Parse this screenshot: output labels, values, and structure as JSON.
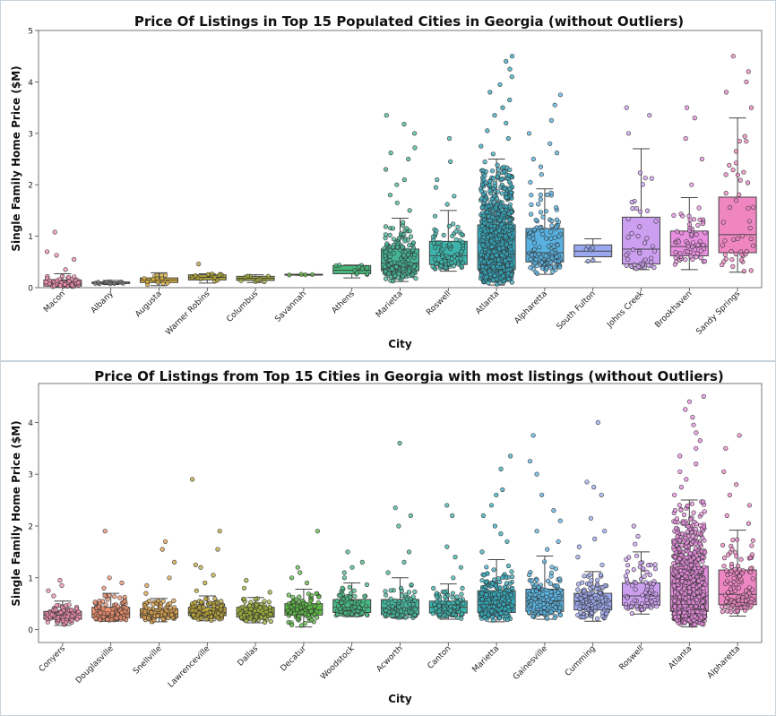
{
  "chart_data": [
    {
      "type": "box",
      "title": "Price Of Listings in Top 15 Populated Cities in Georgia (without Outliers)",
      "xlabel": "City",
      "ylabel": "Single Family Home Price ($M)",
      "ylim": [
        0,
        5
      ],
      "yticks": [
        0,
        1,
        2,
        3,
        4,
        5
      ],
      "grid": false,
      "legend": "none",
      "categories": [
        "Macon",
        "Albany",
        "Augusta",
        "Warner Robins",
        "Columbus",
        "Savannah",
        "Athens",
        "Marietta",
        "Roswell",
        "Atlanta",
        "Alpharetta",
        "South Fulton",
        "Johns Creek",
        "Brookhaven",
        "Sandy Springs"
      ],
      "colors": [
        "#f08fae",
        "#7b7b7b",
        "#d9b03c",
        "#b1a736",
        "#a3ab3d",
        "#68b543",
        "#46b87a",
        "#45b596",
        "#3cb4ab",
        "#35aabf",
        "#58b1e0",
        "#9aa9ef",
        "#cc9ff0",
        "#e88fe0",
        "#ef86c2"
      ],
      "boxes": [
        {
          "min": 0.01,
          "q1": 0.03,
          "median": 0.07,
          "q3": 0.15,
          "max": 0.27,
          "n": 40,
          "extra": [
            0.35,
            0.55,
            0.63,
            0.7,
            1.08
          ]
        },
        {
          "min": 0.06,
          "q1": 0.08,
          "median": 0.1,
          "q3": 0.11,
          "max": 0.14,
          "n": 12,
          "extra": []
        },
        {
          "min": 0.04,
          "q1": 0.1,
          "median": 0.15,
          "q3": 0.19,
          "max": 0.29,
          "n": 15,
          "extra": []
        },
        {
          "min": 0.09,
          "q1": 0.15,
          "median": 0.2,
          "q3": 0.25,
          "max": 0.27,
          "n": 14,
          "extra": [
            0.46
          ]
        },
        {
          "min": 0.1,
          "q1": 0.14,
          "median": 0.18,
          "q3": 0.22,
          "max": 0.25,
          "n": 10,
          "extra": []
        },
        {
          "min": 0.24,
          "q1": 0.25,
          "median": 0.26,
          "q3": 0.26,
          "max": 0.26,
          "n": 4,
          "extra": []
        },
        {
          "min": 0.19,
          "q1": 0.27,
          "median": 0.34,
          "q3": 0.43,
          "max": 0.44,
          "n": 12,
          "extra": []
        },
        {
          "min": 0.12,
          "q1": 0.33,
          "median": 0.48,
          "q3": 0.75,
          "max": 1.35,
          "n": 200,
          "extra": [
            1.5,
            1.65,
            1.8,
            2.0,
            2.1,
            2.3,
            2.5,
            2.62,
            2.72,
            3.0,
            3.18,
            3.35
          ]
        },
        {
          "min": 0.32,
          "q1": 0.45,
          "median": 0.62,
          "q3": 0.9,
          "max": 1.5,
          "n": 80,
          "extra": [
            1.62,
            1.78,
            1.95,
            2.1,
            2.45,
            2.9
          ]
        },
        {
          "min": 0.05,
          "q1": 0.35,
          "median": 0.65,
          "q3": 1.22,
          "max": 2.5,
          "n": 900,
          "extra": [
            2.6,
            2.75,
            2.9,
            3.05,
            3.2,
            3.35,
            3.5,
            3.65,
            3.8,
            3.95,
            4.1,
            4.25,
            4.4,
            4.5
          ]
        },
        {
          "min": 0.26,
          "q1": 0.5,
          "median": 0.68,
          "q3": 1.15,
          "max": 1.92,
          "n": 120,
          "extra": [
            2.05,
            2.2,
            2.35,
            2.5,
            2.62,
            2.8,
            3.0,
            3.25,
            3.55,
            3.75
          ]
        },
        {
          "min": 0.5,
          "q1": 0.6,
          "median": 0.71,
          "q3": 0.83,
          "max": 0.95,
          "n": 6,
          "extra": []
        },
        {
          "min": 0.35,
          "q1": 0.46,
          "median": 0.75,
          "q3": 1.37,
          "max": 2.7,
          "n": 45,
          "extra": [
            3.0,
            3.35,
            3.5
          ]
        },
        {
          "min": 0.35,
          "q1": 0.62,
          "median": 0.8,
          "q3": 1.1,
          "max": 1.75,
          "n": 60,
          "extra": [
            2.0,
            2.5,
            2.9,
            3.3,
            3.5
          ]
        },
        {
          "min": 0.3,
          "q1": 0.68,
          "median": 1.03,
          "q3": 1.76,
          "max": 3.3,
          "n": 45,
          "extra": [
            3.5,
            3.8,
            4.0,
            4.2,
            4.5
          ]
        }
      ]
    },
    {
      "type": "box",
      "title": "Price Of Listings from Top 15 Cities in Georgia with most listings (without Outliers)",
      "xlabel": "City",
      "ylabel": "Single Family Home Price ($M)",
      "ylim": [
        -0.25,
        4.75
      ],
      "yticks": [
        0,
        1,
        2,
        3,
        4
      ],
      "grid": false,
      "legend": "none",
      "categories": [
        "Conyers",
        "Douglasville",
        "Snellville",
        "Lawrenceville",
        "Dallas",
        "Decatur",
        "Woodstock",
        "Acworth",
        "Canton",
        "Marietta",
        "Gainesville",
        "Cumming",
        "Roswell",
        "Atlanta",
        "Alpharetta"
      ],
      "colors": [
        "#f08fae",
        "#ee8f6e",
        "#d9a14d",
        "#bfa83b",
        "#9fb03c",
        "#5db946",
        "#47ba84",
        "#45b59c",
        "#3cb3ad",
        "#35acbd",
        "#5ab3e0",
        "#9eaaef",
        "#cc9ff0",
        "#e98de0",
        "#ee86c3"
      ],
      "boxes": [
        {
          "min": 0.08,
          "q1": 0.2,
          "median": 0.28,
          "q3": 0.35,
          "max": 0.55,
          "n": 90,
          "extra": [
            0.65,
            0.75,
            0.85,
            0.95
          ]
        },
        {
          "min": 0.16,
          "q1": 0.23,
          "median": 0.3,
          "q3": 0.43,
          "max": 0.7,
          "n": 100,
          "extra": [
            0.8,
            0.9,
            1.0,
            1.9
          ]
        },
        {
          "min": 0.15,
          "q1": 0.23,
          "median": 0.3,
          "q3": 0.4,
          "max": 0.6,
          "n": 90,
          "extra": [
            0.7,
            0.85,
            1.0,
            1.3,
            1.55,
            1.7
          ]
        },
        {
          "min": 0.17,
          "q1": 0.27,
          "median": 0.33,
          "q3": 0.43,
          "max": 0.65,
          "n": 130,
          "extra": [
            0.75,
            0.9,
            1.05,
            1.2,
            1.25,
            1.55,
            1.9,
            2.9
          ]
        },
        {
          "min": 0.13,
          "q1": 0.24,
          "median": 0.31,
          "q3": 0.43,
          "max": 0.62,
          "n": 90,
          "extra": [
            0.72,
            0.8,
            0.95
          ]
        },
        {
          "min": 0.05,
          "q1": 0.28,
          "median": 0.38,
          "q3": 0.5,
          "max": 0.78,
          "n": 90,
          "extra": [
            0.9,
            1.0,
            1.1,
            1.2,
            1.9
          ]
        },
        {
          "min": 0.25,
          "q1": 0.33,
          "median": 0.43,
          "q3": 0.58,
          "max": 0.9,
          "n": 90,
          "extra": [
            1.0,
            1.1,
            1.2,
            1.3,
            1.5
          ]
        },
        {
          "min": 0.22,
          "q1": 0.29,
          "median": 0.42,
          "q3": 0.58,
          "max": 1.0,
          "n": 90,
          "extra": [
            1.1,
            1.3,
            1.5,
            2.0,
            2.2,
            2.35,
            3.6
          ]
        },
        {
          "min": 0.2,
          "q1": 0.32,
          "median": 0.43,
          "q3": 0.55,
          "max": 0.88,
          "n": 90,
          "extra": [
            1.0,
            1.2,
            1.4,
            1.6,
            2.2,
            2.4
          ]
        },
        {
          "min": 0.15,
          "q1": 0.33,
          "median": 0.48,
          "q3": 0.75,
          "max": 1.35,
          "n": 200,
          "extra": [
            1.5,
            1.7,
            1.85,
            2.0,
            2.2,
            2.4,
            2.6,
            2.7,
            3.1,
            3.35
          ]
        },
        {
          "min": 0.2,
          "q1": 0.35,
          "median": 0.55,
          "q3": 0.78,
          "max": 1.42,
          "n": 120,
          "extra": [
            1.55,
            1.7,
            1.9,
            2.1,
            2.3,
            2.6,
            3.0,
            3.25,
            3.75
          ]
        },
        {
          "min": 0.16,
          "q1": 0.38,
          "median": 0.55,
          "q3": 0.7,
          "max": 1.12,
          "n": 130,
          "extra": [
            1.25,
            1.4,
            1.6,
            1.75,
            1.9,
            2.15,
            2.6,
            2.75,
            2.85,
            4.0
          ]
        },
        {
          "min": 0.3,
          "q1": 0.47,
          "median": 0.65,
          "q3": 0.9,
          "max": 1.5,
          "n": 80,
          "extra": [
            1.65,
            1.8,
            2.0
          ]
        },
        {
          "min": 0.05,
          "q1": 0.35,
          "median": 0.65,
          "q3": 1.22,
          "max": 2.5,
          "n": 900,
          "extra": [
            2.6,
            2.75,
            2.9,
            3.05,
            3.2,
            3.35,
            3.5,
            3.65,
            3.8,
            3.95,
            4.1,
            4.25,
            4.4,
            4.5
          ]
        },
        {
          "min": 0.26,
          "q1": 0.48,
          "median": 0.68,
          "q3": 1.15,
          "max": 1.92,
          "n": 120,
          "extra": [
            2.05,
            2.2,
            2.4,
            2.6,
            2.8,
            3.05,
            3.5,
            3.75
          ]
        }
      ]
    }
  ]
}
